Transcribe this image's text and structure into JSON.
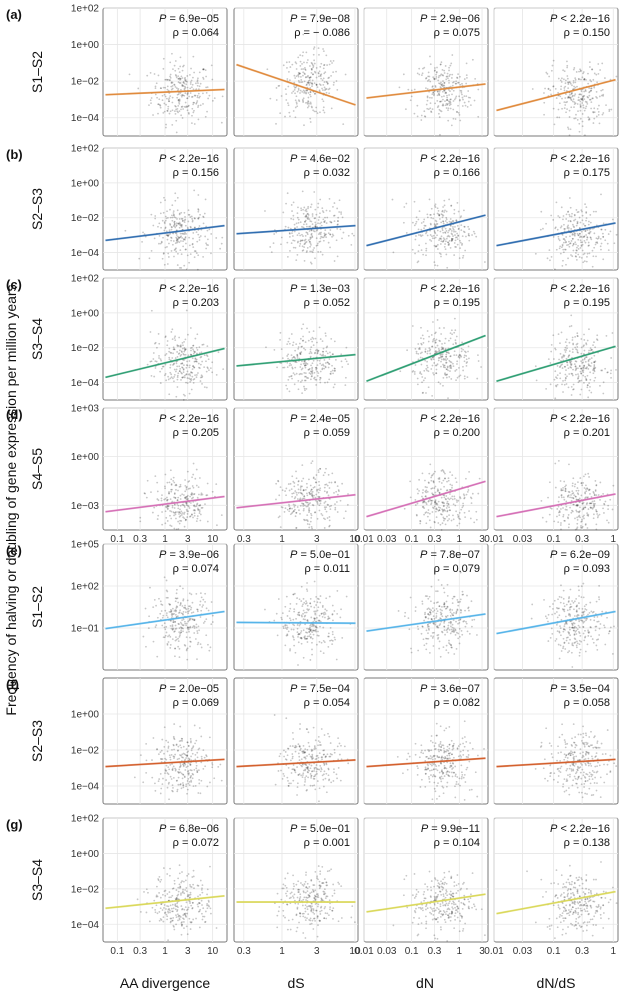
{
  "chart_data": {
    "type": "scatter",
    "y_title": "Frequency of halving or doubling of gene expression per million years",
    "columns": [
      {
        "xlabel": "AA divergence",
        "xlim": [
          0.05,
          20
        ],
        "xticks": [
          0.1,
          1,
          10
        ],
        "minor_xticks": [
          0.3,
          3
        ],
        "tick_labels": [
          "0.1",
          "0.3",
          "1",
          "3",
          "10"
        ],
        "tick_values": [
          0.1,
          0.3,
          1,
          3,
          10
        ],
        "center": 2.2
      },
      {
        "xlabel": "dS",
        "xlim": [
          0.22,
          11
        ],
        "tick_labels": [
          "0.3",
          "1",
          "3",
          "10"
        ],
        "tick_values": [
          0.3,
          1,
          3,
          10
        ],
        "center": 2.4
      },
      {
        "xlabel": "dN",
        "xlim": [
          0.01,
          4
        ],
        "tick_labels": [
          "0.01",
          "0.03",
          "0.1",
          "0.3",
          "1",
          "3"
        ],
        "tick_values": [
          0.01,
          0.03,
          0.1,
          0.3,
          1,
          3
        ],
        "center": 0.45
      },
      {
        "xlabel": "dN/dS",
        "xlim": [
          0.01,
          1.2
        ],
        "tick_labels": [
          "0.01",
          "0.03",
          "0.1",
          "0.3",
          "1"
        ],
        "tick_values": [
          0.01,
          0.03,
          0.1,
          0.3,
          1
        ],
        "center": 0.25
      }
    ],
    "rows": [
      {
        "letter": "(a)",
        "name": "S1–S2",
        "color": "#E08A3C",
        "ylim": [
          1e-05,
          100
        ],
        "y_tick_labels": [
          "1e+02",
          "1e+00",
          "1e−02",
          "1e−04"
        ],
        "y_tick_values": [
          100,
          1,
          0.01,
          0.0001
        ],
        "stats": [
          {
            "p_label": "P",
            "p_op": " = ",
            "p_value": "6.9e−05",
            "rho": "ρ = 0.064",
            "line": [
              0.0018,
              0.0035
            ]
          },
          {
            "p_label": "P",
            "p_op": " = ",
            "p_value": "7.9e−08",
            "rho": "ρ = − 0.086",
            "line": [
              0.08,
              0.0005
            ]
          },
          {
            "p_label": "P",
            "p_op": " = ",
            "p_value": "2.9e−06",
            "rho": "ρ = 0.075",
            "line": [
              0.0012,
              0.007
            ]
          },
          {
            "p_label": "P",
            "p_op": " < ",
            "p_value": "2.2e−16",
            "rho": "ρ = 0.150",
            "line": [
              0.00025,
              0.012
            ]
          }
        ]
      },
      {
        "letter": "(b)",
        "name": "S2–S3",
        "color": "#2F6DB0",
        "ylim": [
          1e-05,
          100
        ],
        "y_tick_labels": [
          "1e+02",
          "1e+00",
          "1e−02",
          "1e−04"
        ],
        "y_tick_values": [
          100,
          1,
          0.01,
          0.0001
        ],
        "stats": [
          {
            "p_label": "P",
            "p_op": " < ",
            "p_value": "2.2e−16",
            "rho": "ρ = 0.156",
            "line": [
              0.0005,
              0.0035
            ]
          },
          {
            "p_label": "P",
            "p_op": " = ",
            "p_value": "4.6e−02",
            "rho": "ρ = 0.032",
            "line": [
              0.0012,
              0.0035
            ]
          },
          {
            "p_label": "P",
            "p_op": " < ",
            "p_value": "2.2e−16",
            "rho": "ρ = 0.166",
            "line": [
              0.00025,
              0.014
            ]
          },
          {
            "p_label": "P",
            "p_op": " < ",
            "p_value": "2.2e−16",
            "rho": "ρ = 0.175",
            "line": [
              0.00025,
              0.005
            ]
          }
        ]
      },
      {
        "letter": "(c)",
        "name": "S3–S4",
        "color": "#2E9E73",
        "ylim": [
          1e-05,
          100
        ],
        "y_tick_labels": [
          "1e+02",
          "1e+00",
          "1e−02",
          "1e−04"
        ],
        "y_tick_values": [
          100,
          1,
          0.01,
          0.0001
        ],
        "stats": [
          {
            "p_label": "P",
            "p_op": " < ",
            "p_value": "2.2e−16",
            "rho": "ρ = 0.203",
            "line": [
              0.0002,
              0.009
            ]
          },
          {
            "p_label": "P",
            "p_op": " = ",
            "p_value": "1.3e−03",
            "rho": "ρ = 0.052",
            "line": [
              0.0009,
              0.004
            ]
          },
          {
            "p_label": "P",
            "p_op": " < ",
            "p_value": "2.2e−16",
            "rho": "ρ = 0.195",
            "line": [
              0.00012,
              0.05
            ]
          },
          {
            "p_label": "P",
            "p_op": " < ",
            "p_value": "2.2e−16",
            "rho": "ρ = 0.195",
            "line": [
              0.00012,
              0.012
            ]
          }
        ]
      },
      {
        "letter": "(d)",
        "name": "S4–S5",
        "color": "#D56FB6",
        "ylim": [
          3e-05,
          1000
        ],
        "y_tick_labels": [
          "1e+03",
          "1e+00",
          "1e−03"
        ],
        "y_tick_values": [
          1000,
          1,
          0.001
        ],
        "stats": [
          {
            "p_label": "P",
            "p_op": " < ",
            "p_value": "2.2e−16",
            "rho": "ρ = 0.205",
            "line": [
              0.0004,
              0.0035
            ]
          },
          {
            "p_label": "P",
            "p_op": " = ",
            "p_value": "2.4e−05",
            "rho": "ρ = 0.059",
            "line": [
              0.0007,
              0.0045
            ]
          },
          {
            "p_label": "P",
            "p_op": " < ",
            "p_value": "2.2e−16",
            "rho": "ρ = 0.200",
            "line": [
              0.0002,
              0.03
            ]
          },
          {
            "p_label": "P",
            "p_op": " < ",
            "p_value": "2.2e−16",
            "rho": "ρ = 0.201",
            "line": [
              0.0002,
              0.005
            ]
          }
        ]
      },
      {
        "letter": "(e)",
        "name": "S1–S2",
        "color": "#56B4E9",
        "ylim": [
          0.0001,
          100000
        ],
        "y_tick_labels": [
          "1e+05",
          "1e+02",
          "1e−01"
        ],
        "y_tick_values": [
          100000,
          100,
          0.1
        ],
        "stats": [
          {
            "p_label": "P",
            "p_op": " = ",
            "p_value": "3.9e−06",
            "rho": "ρ = 0.074",
            "line": [
              0.09,
              1.5
            ]
          },
          {
            "p_label": "P",
            "p_op": " = ",
            "p_value": "5.0e−01",
            "rho": "ρ = 0.011",
            "line": [
              0.25,
              0.22
            ]
          },
          {
            "p_label": "P",
            "p_op": " = ",
            "p_value": "7.8e−07",
            "rho": "ρ = 0.079",
            "line": [
              0.06,
              1.0
            ]
          },
          {
            "p_label": "P",
            "p_op": " = ",
            "p_value": "6.2e−09",
            "rho": "ρ = 0.093",
            "line": [
              0.04,
              1.5
            ]
          }
        ]
      },
      {
        "letter": "(f)",
        "name": "S2–S3",
        "color": "#D35F2C",
        "ylim": [
          1e-05,
          100
        ],
        "y_tick_labels": [
          "1e+00",
          "1e−02",
          "1e−04"
        ],
        "y_tick_values": [
          1,
          0.01,
          0.0001
        ],
        "stats": [
          {
            "p_label": "P",
            "p_op": " = ",
            "p_value": "2.0e−05",
            "rho": "ρ = 0.069",
            "line": [
              0.0012,
              0.003
            ]
          },
          {
            "p_label": "P",
            "p_op": " = ",
            "p_value": "7.5e−04",
            "rho": "ρ = 0.054",
            "line": [
              0.0012,
              0.0028
            ]
          },
          {
            "p_label": "P",
            "p_op": " = ",
            "p_value": "3.6e−07",
            "rho": "ρ = 0.082",
            "line": [
              0.0012,
              0.0035
            ]
          },
          {
            "p_label": "P",
            "p_op": " = ",
            "p_value": "3.5e−04",
            "rho": "ρ = 0.058",
            "line": [
              0.0012,
              0.003
            ]
          }
        ]
      },
      {
        "letter": "(g)",
        "name": "S3–S4",
        "color": "#DAD85A",
        "ylim": [
          1e-05,
          100
        ],
        "y_tick_labels": [
          "1e+02",
          "1e+00",
          "1e−02",
          "1e−04"
        ],
        "y_tick_values": [
          100,
          1,
          0.01,
          0.0001
        ],
        "stats": [
          {
            "p_label": "P",
            "p_op": " = ",
            "p_value": "6.8e−06",
            "rho": "ρ = 0.072",
            "line": [
              0.0008,
              0.004
            ]
          },
          {
            "p_label": "P",
            "p_op": " = ",
            "p_value": "5.0e−01",
            "rho": "ρ = 0.001",
            "line": [
              0.0018,
              0.0018
            ]
          },
          {
            "p_label": "P",
            "p_op": " = ",
            "p_value": "9.9e−11",
            "rho": "ρ = 0.104",
            "line": [
              0.0005,
              0.005
            ]
          },
          {
            "p_label": "P",
            "p_op": " < ",
            "p_value": "2.2e−16",
            "rho": "ρ = 0.138",
            "line": [
              0.0004,
              0.007
            ]
          }
        ]
      }
    ]
  }
}
